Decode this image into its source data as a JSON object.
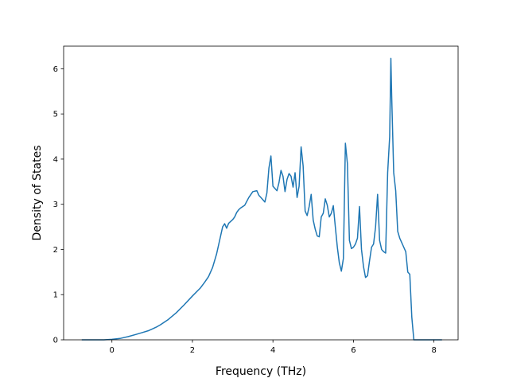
{
  "chart_data": {
    "type": "line",
    "title": "",
    "xlabel": "Frequency (THz)",
    "ylabel": "Density of States",
    "xlim": [
      -1.2,
      8.6
    ],
    "ylim": [
      0,
      6.5
    ],
    "xticks": [
      0,
      2,
      4,
      6,
      8
    ],
    "xtick_labels": [
      "0",
      "2",
      "4",
      "6",
      "8"
    ],
    "yticks": [
      0,
      1,
      2,
      3,
      4,
      5,
      6
    ],
    "ytick_labels": [
      "0",
      "1",
      "2",
      "3",
      "4",
      "5",
      "6"
    ],
    "grid": false,
    "legend": "none",
    "line_color": "#1f77b4",
    "series": [
      {
        "x": [
          -0.75,
          -0.2,
          0.0,
          0.2,
          0.4,
          0.6,
          0.75,
          0.9,
          1.0,
          1.1,
          1.2,
          1.4,
          1.6,
          1.8,
          2.0,
          2.2,
          2.3,
          2.4,
          2.5,
          2.6,
          2.7,
          2.75,
          2.8,
          2.85,
          2.9,
          3.0,
          3.05,
          3.1,
          3.15,
          3.2,
          3.3,
          3.4,
          3.5,
          3.6,
          3.65,
          3.7,
          3.75,
          3.8,
          3.85,
          3.9,
          3.95,
          4.0,
          4.1,
          4.15,
          4.2,
          4.25,
          4.3,
          4.35,
          4.4,
          4.45,
          4.5,
          4.55,
          4.6,
          4.65,
          4.7,
          4.75,
          4.8,
          4.85,
          4.9,
          4.95,
          5.0,
          5.05,
          5.1,
          5.15,
          5.2,
          5.25,
          5.3,
          5.35,
          5.4,
          5.45,
          5.5,
          5.55,
          5.6,
          5.65,
          5.7,
          5.75,
          5.8,
          5.85,
          5.9,
          5.95,
          6.0,
          6.05,
          6.1,
          6.15,
          6.2,
          6.25,
          6.3,
          6.35,
          6.4,
          6.45,
          6.5,
          6.55,
          6.6,
          6.65,
          6.7,
          6.75,
          6.8,
          6.85,
          6.9,
          6.93,
          6.95,
          7.0,
          7.05,
          7.1,
          7.15,
          7.2,
          7.25,
          7.3,
          7.35,
          7.4,
          7.45,
          7.5,
          7.6,
          8.2
        ],
        "y": [
          0.0,
          0.0,
          0.01,
          0.03,
          0.07,
          0.12,
          0.16,
          0.2,
          0.24,
          0.28,
          0.33,
          0.45,
          0.6,
          0.78,
          0.97,
          1.15,
          1.27,
          1.4,
          1.6,
          1.9,
          2.3,
          2.5,
          2.57,
          2.47,
          2.58,
          2.66,
          2.72,
          2.82,
          2.88,
          2.92,
          2.98,
          3.15,
          3.28,
          3.3,
          3.2,
          3.15,
          3.1,
          3.05,
          3.25,
          3.8,
          4.07,
          3.4,
          3.3,
          3.48,
          3.75,
          3.62,
          3.28,
          3.55,
          3.68,
          3.62,
          3.38,
          3.7,
          3.15,
          3.4,
          4.27,
          3.85,
          2.85,
          2.75,
          2.95,
          3.22,
          2.65,
          2.45,
          2.3,
          2.28,
          2.72,
          2.8,
          3.12,
          2.98,
          2.72,
          2.8,
          2.97,
          2.5,
          2.05,
          1.7,
          1.52,
          1.8,
          4.35,
          3.9,
          2.2,
          2.02,
          2.05,
          2.12,
          2.25,
          2.95,
          2.0,
          1.62,
          1.38,
          1.42,
          1.75,
          2.05,
          2.12,
          2.5,
          3.22,
          2.2,
          2.0,
          1.95,
          1.92,
          3.7,
          4.5,
          6.23,
          5.4,
          3.7,
          3.3,
          2.4,
          2.25,
          2.15,
          2.05,
          1.95,
          1.5,
          1.45,
          0.5,
          0.0,
          0.0,
          0.0
        ]
      }
    ]
  }
}
